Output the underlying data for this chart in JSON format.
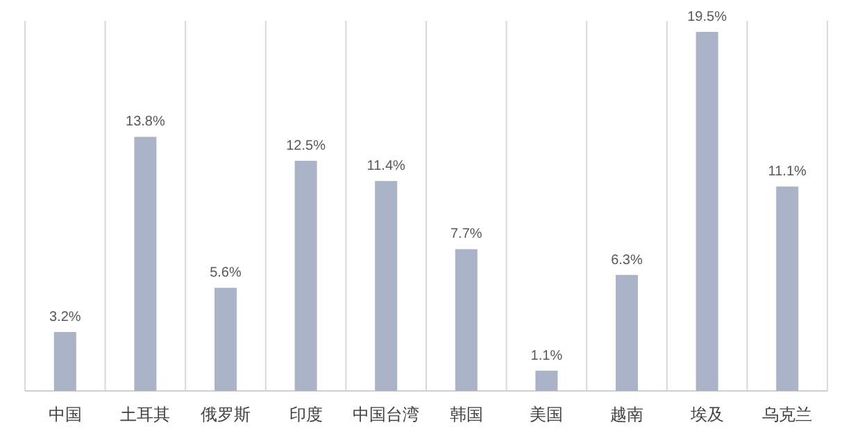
{
  "chart_data": {
    "type": "bar",
    "categories": [
      "中国",
      "土耳其",
      "俄罗斯",
      "印度",
      "中国台湾",
      "韩国",
      "美国",
      "越南",
      "埃及",
      "乌克兰"
    ],
    "values": [
      3.2,
      13.8,
      5.6,
      12.5,
      11.4,
      7.7,
      1.1,
      6.3,
      19.5,
      11.1
    ],
    "value_labels": [
      "3.2%",
      "13.8%",
      "5.6%",
      "12.5%",
      "11.4%",
      "7.7%",
      "1.1%",
      "6.3%",
      "19.5%",
      "11.1%"
    ],
    "color": "#abb3c8",
    "grid": "x"
  }
}
